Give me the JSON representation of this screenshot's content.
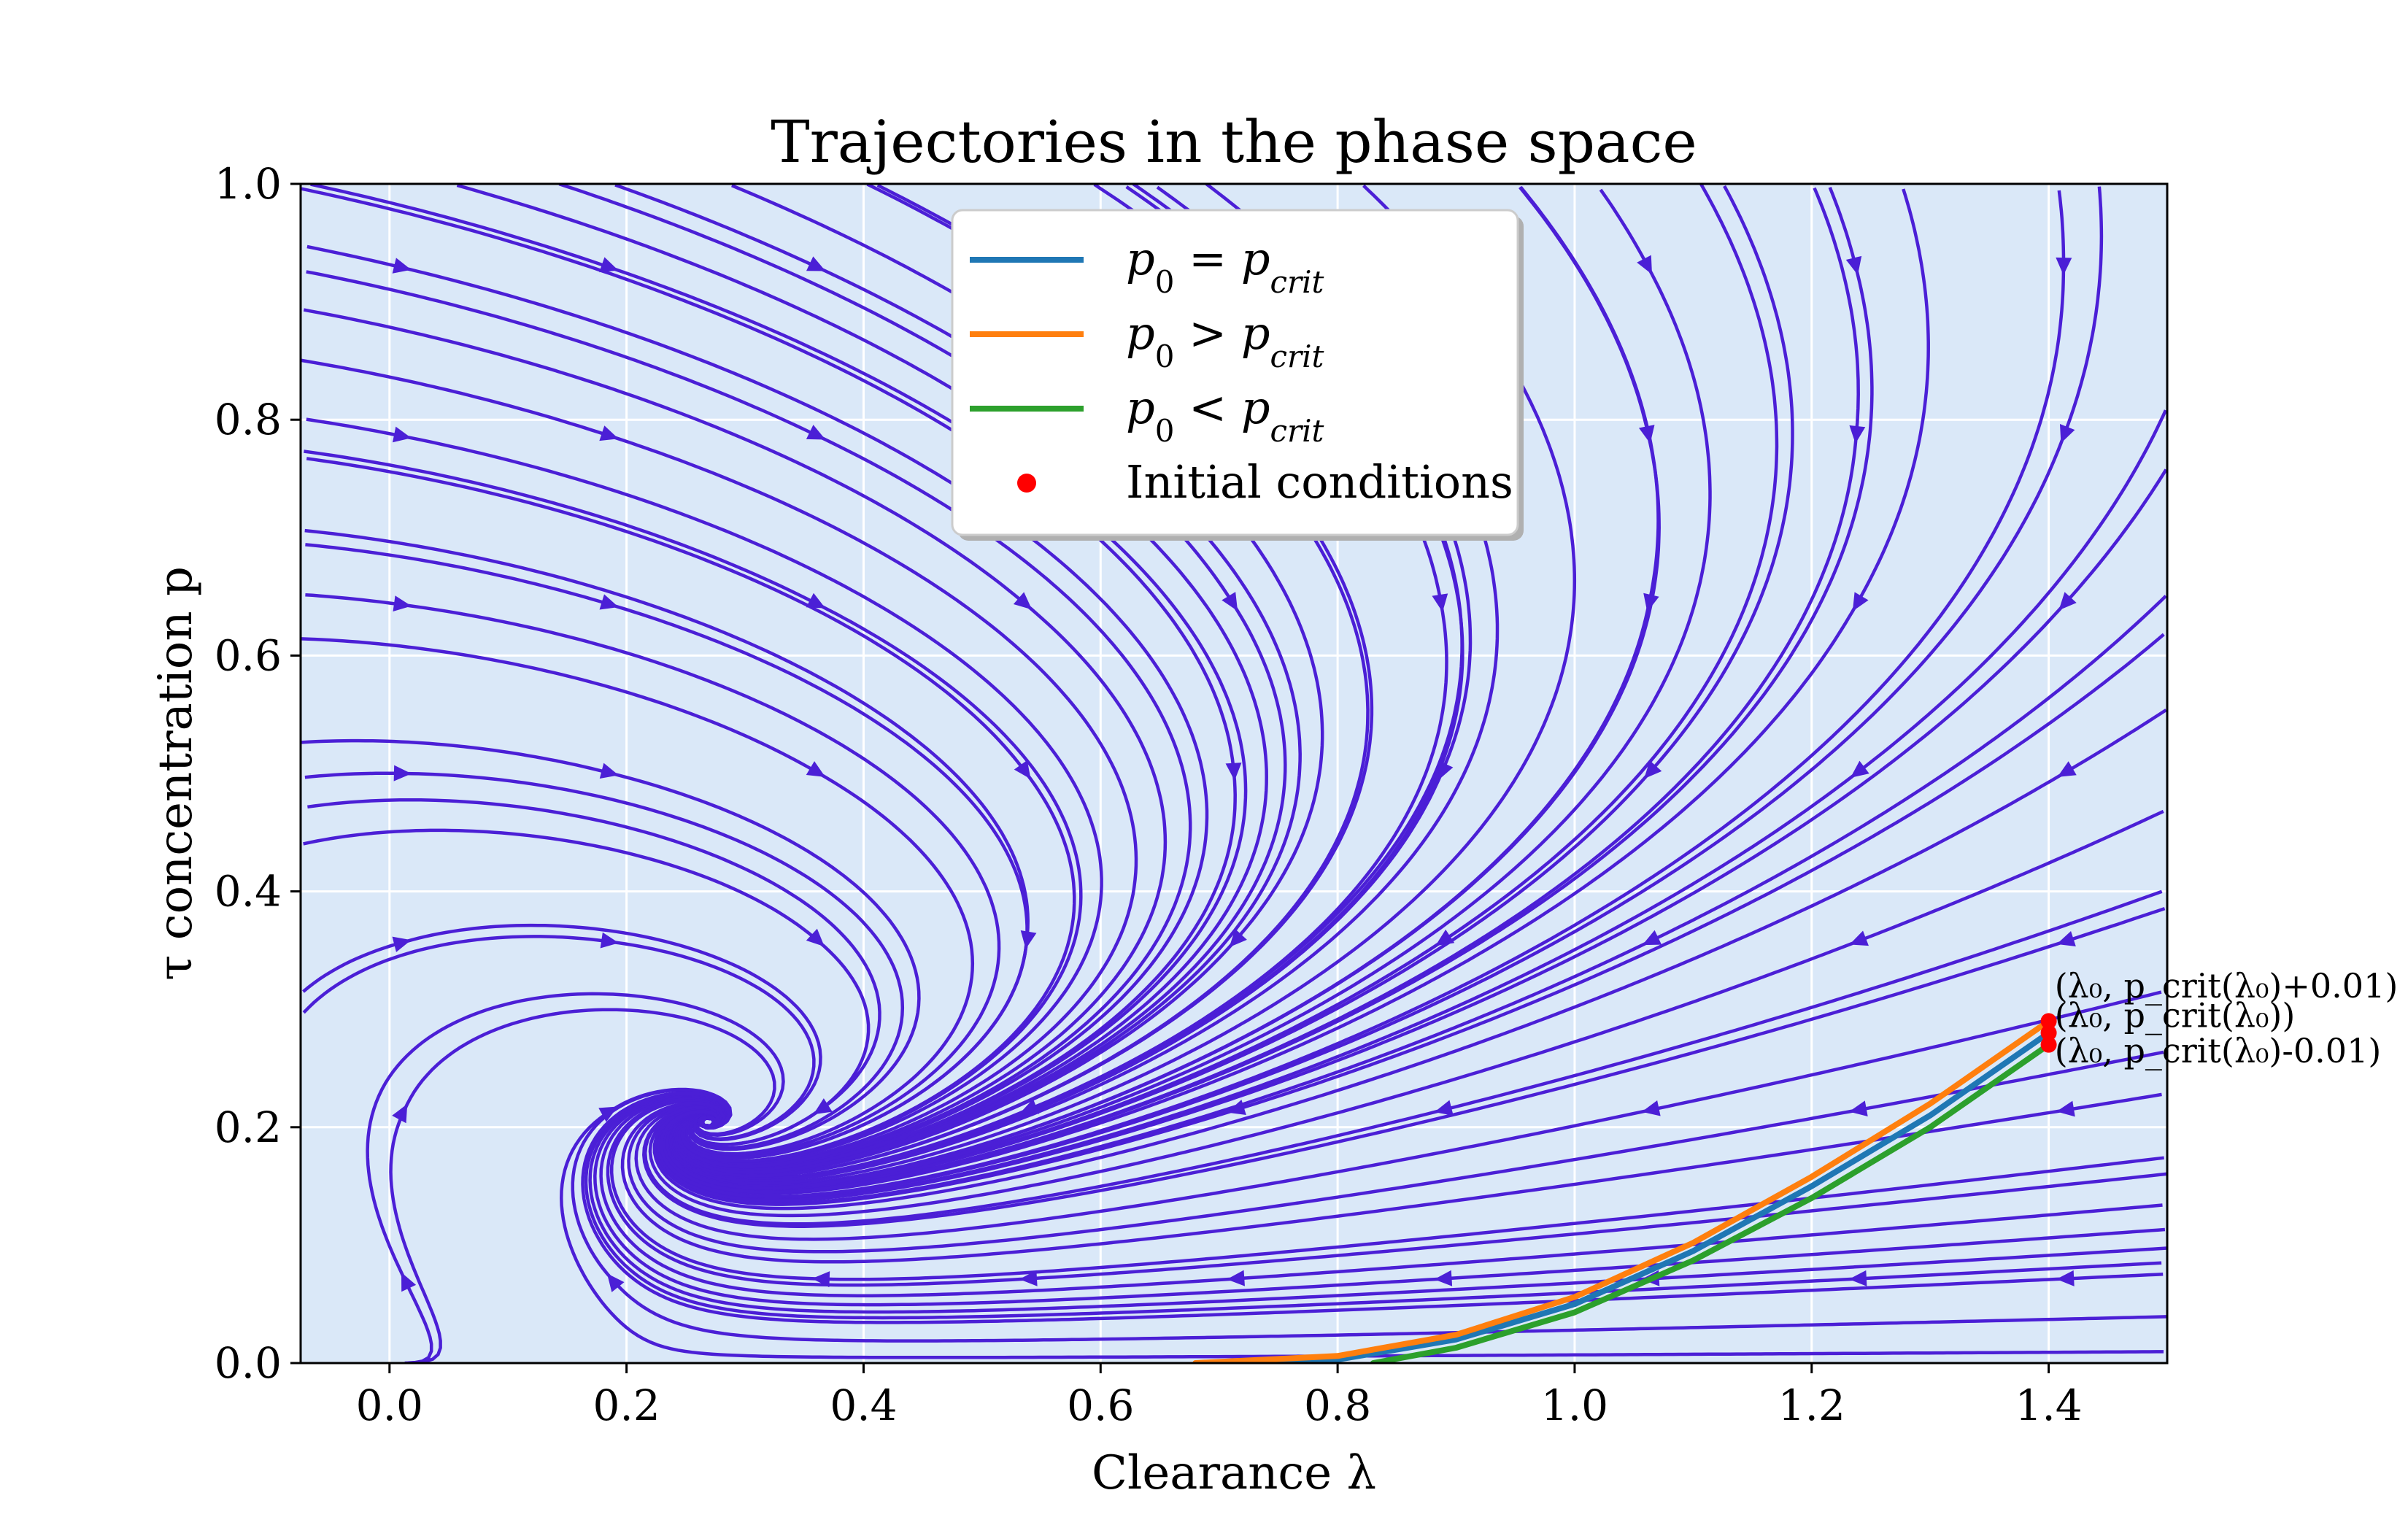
{
  "chart_data": {
    "type": "line",
    "title": "Trajectories in the phase space",
    "xlabel": "Clearance λ",
    "ylabel": "τ concentration p",
    "xlim": [
      -0.075,
      1.5
    ],
    "ylim": [
      0.0,
      1.0
    ],
    "xticks": [
      "0.0",
      "0.2",
      "0.4",
      "0.6",
      "0.8",
      "1.0",
      "1.2",
      "1.4"
    ],
    "yticks": [
      "0.0",
      "0.2",
      "0.4",
      "0.6",
      "0.8",
      "1.0"
    ],
    "grid": true,
    "background_color": "#dae8f8",
    "stream_color": "#4b1fd6",
    "legend_position": "top-center",
    "legend": [
      {
        "label": "p₀ = p_crit",
        "base": "p",
        "sub": "0",
        "op": " = ",
        "rhs": "p",
        "rhs_sub": "crit",
        "color": "#1f77b4",
        "kind": "line"
      },
      {
        "label": "p₀ > p_crit",
        "base": "p",
        "sub": "0",
        "op": " > ",
        "rhs": "p",
        "rhs_sub": "crit",
        "color": "#ff7f0e",
        "kind": "line"
      },
      {
        "label": "p₀ < p_crit",
        "base": "p",
        "sub": "0",
        "op": " < ",
        "rhs": "p",
        "rhs_sub": "crit",
        "color": "#2ca02c",
        "kind": "line"
      },
      {
        "label": "Initial conditions",
        "color": "#ff0000",
        "kind": "marker"
      }
    ],
    "series": [
      {
        "name": "p₀ = p_crit",
        "color": "#1f77b4",
        "x": [
          1.4,
          1.3,
          1.2,
          1.1,
          1.0,
          0.9,
          0.8,
          0.73
        ],
        "y": [
          0.28,
          0.21,
          0.15,
          0.095,
          0.05,
          0.02,
          0.003,
          0.0
        ]
      },
      {
        "name": "p₀ > p_crit",
        "color": "#ff7f0e",
        "x": [
          1.4,
          1.3,
          1.2,
          1.1,
          1.0,
          0.9,
          0.8,
          0.68
        ],
        "y": [
          0.29,
          0.22,
          0.158,
          0.102,
          0.056,
          0.024,
          0.006,
          0.0
        ]
      },
      {
        "name": "p₀ < p_crit",
        "color": "#2ca02c",
        "x": [
          1.4,
          1.3,
          1.2,
          1.1,
          1.0,
          0.9,
          0.83
        ],
        "y": [
          0.27,
          0.2,
          0.14,
          0.087,
          0.043,
          0.013,
          0.0
        ]
      }
    ],
    "initial_conditions": {
      "x": [
        1.4,
        1.4,
        1.4
      ],
      "y": [
        0.29,
        0.28,
        0.27
      ]
    },
    "annotations": [
      {
        "text": "(λ₀, p_crit(λ₀)+0.01)",
        "x": 1.405,
        "y": 0.31
      },
      {
        "text": "(λ₀, p_crit(λ₀))",
        "x": 1.405,
        "y": 0.285
      },
      {
        "text": "(λ₀, p_crit(λ₀)-0.01)",
        "x": 1.405,
        "y": 0.255
      }
    ],
    "baseline_dashed_y": 0.0
  }
}
